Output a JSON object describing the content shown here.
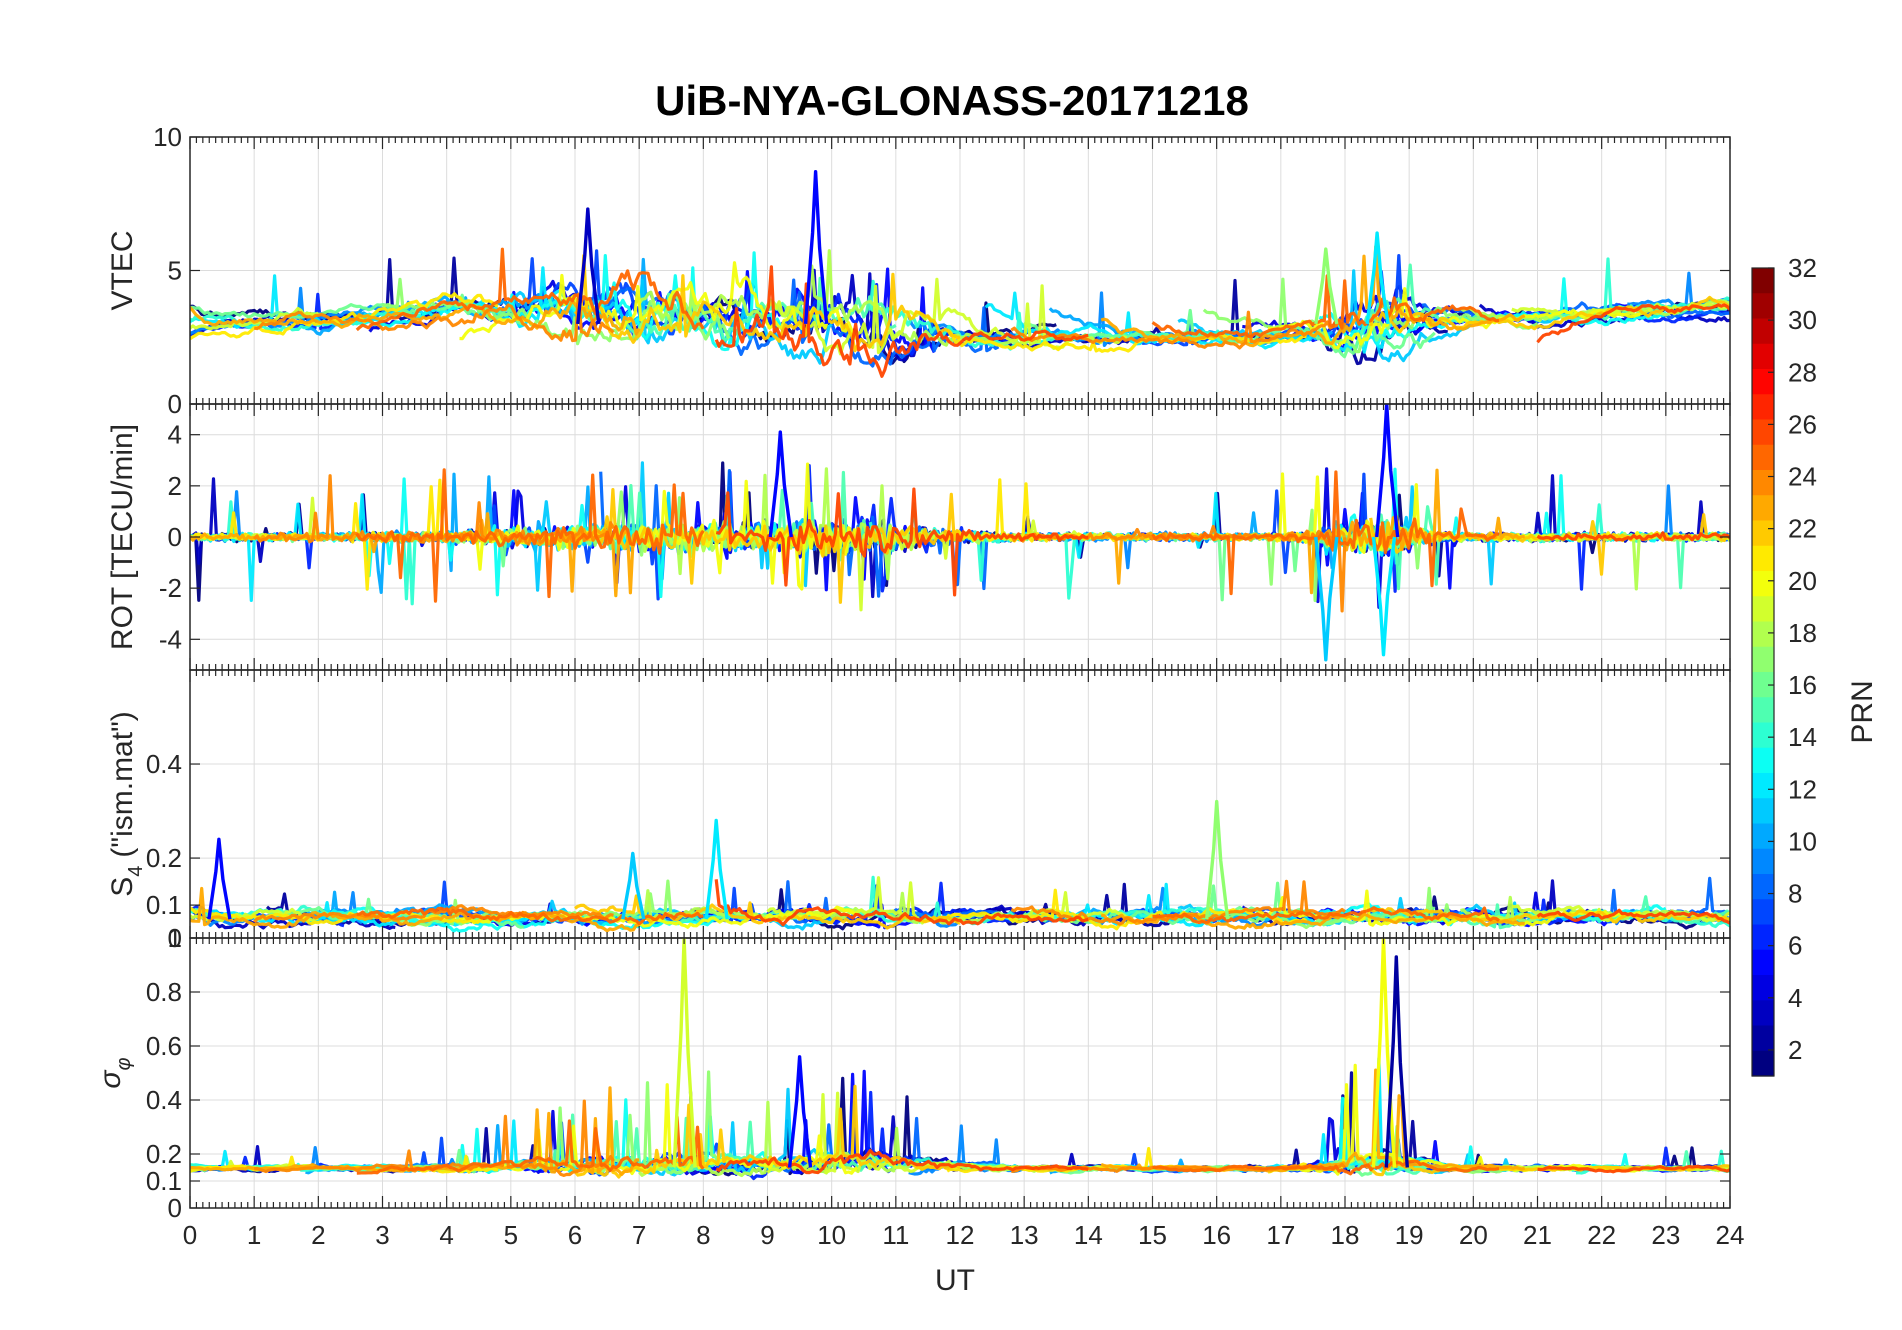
{
  "chart_data": {
    "type": "line",
    "title": "UiB-NYA-GLONASS-20171218",
    "xlabel": "UT",
    "x_ticks": [
      "0",
      "1",
      "2",
      "3",
      "4",
      "5",
      "6",
      "7",
      "8",
      "9",
      "10",
      "11",
      "12",
      "13",
      "14",
      "15",
      "16",
      "17",
      "18",
      "19",
      "20",
      "21",
      "22",
      "23",
      "24"
    ],
    "xlim": [
      0,
      24
    ],
    "grid": true,
    "colorbar": {
      "label": "PRN",
      "range": [
        1,
        32
      ],
      "ticks": [
        "2",
        "4",
        "6",
        "8",
        "10",
        "12",
        "14",
        "16",
        "18",
        "20",
        "22",
        "24",
        "26",
        "28",
        "30",
        "32"
      ],
      "colormap": "jet"
    },
    "panels": [
      {
        "ylabel": "VTEC",
        "ylim": [
          0,
          10
        ],
        "y_ticks": [
          "0",
          "5",
          "10"
        ],
        "notable_peaks": [
          {
            "x": 9.75,
            "y": 8.7,
            "prn": 5
          },
          {
            "x": 6.2,
            "y": 7.3,
            "prn": 3
          },
          {
            "x": 18.5,
            "y": 6.4,
            "prn": 12
          },
          {
            "x": 17.7,
            "y": 5.8,
            "prn": 17
          }
        ]
      },
      {
        "ylabel": "ROT [TECU/min]",
        "ylim": [
          -5.2,
          5.2
        ],
        "y_ticks": [
          "-4",
          "-2",
          "0",
          "2",
          "4"
        ],
        "notable_peaks": [
          {
            "x": 18.65,
            "y": 5.2,
            "prn": 5
          },
          {
            "x": 17.7,
            "y": -4.8,
            "prn": 11
          },
          {
            "x": 18.6,
            "y": -4.6,
            "prn": 12
          },
          {
            "x": 9.2,
            "y": 4.1,
            "prn": 5
          }
        ]
      },
      {
        "ylabel": "S₄ (\"ism.mat\")",
        "ylabel_main": "S",
        "ylabel_sub": "4",
        "ylabel_rest": "(\"ism.mat\")",
        "ylim": [
          0.03,
          0.6
        ],
        "y_ticks": [
          "0.1",
          "0.2",
          "0.4"
        ],
        "overlap_label": "0",
        "notable_peaks": [
          {
            "x": 16.0,
            "y": 0.32,
            "prn": 17
          },
          {
            "x": 8.2,
            "y": 0.28,
            "prn": 12
          },
          {
            "x": 0.45,
            "y": 0.24,
            "prn": 5
          },
          {
            "x": 6.9,
            "y": 0.21,
            "prn": 11
          }
        ]
      },
      {
        "ylabel": "σ φ",
        "ylabel_main": "σ",
        "ylabel_sub": "φ",
        "ylim": [
          0,
          1
        ],
        "y_ticks": [
          "0",
          "0.1",
          "0.2",
          "0.4",
          "0.6",
          "0.8",
          "1"
        ],
        "notable_peaks": [
          {
            "x": 7.7,
            "y": 1.0,
            "prn": 19
          },
          {
            "x": 18.6,
            "y": 1.0,
            "prn": 20
          },
          {
            "x": 18.8,
            "y": 0.93,
            "prn": 2
          },
          {
            "x": 9.5,
            "y": 0.56,
            "prn": 5
          }
        ]
      }
    ]
  }
}
